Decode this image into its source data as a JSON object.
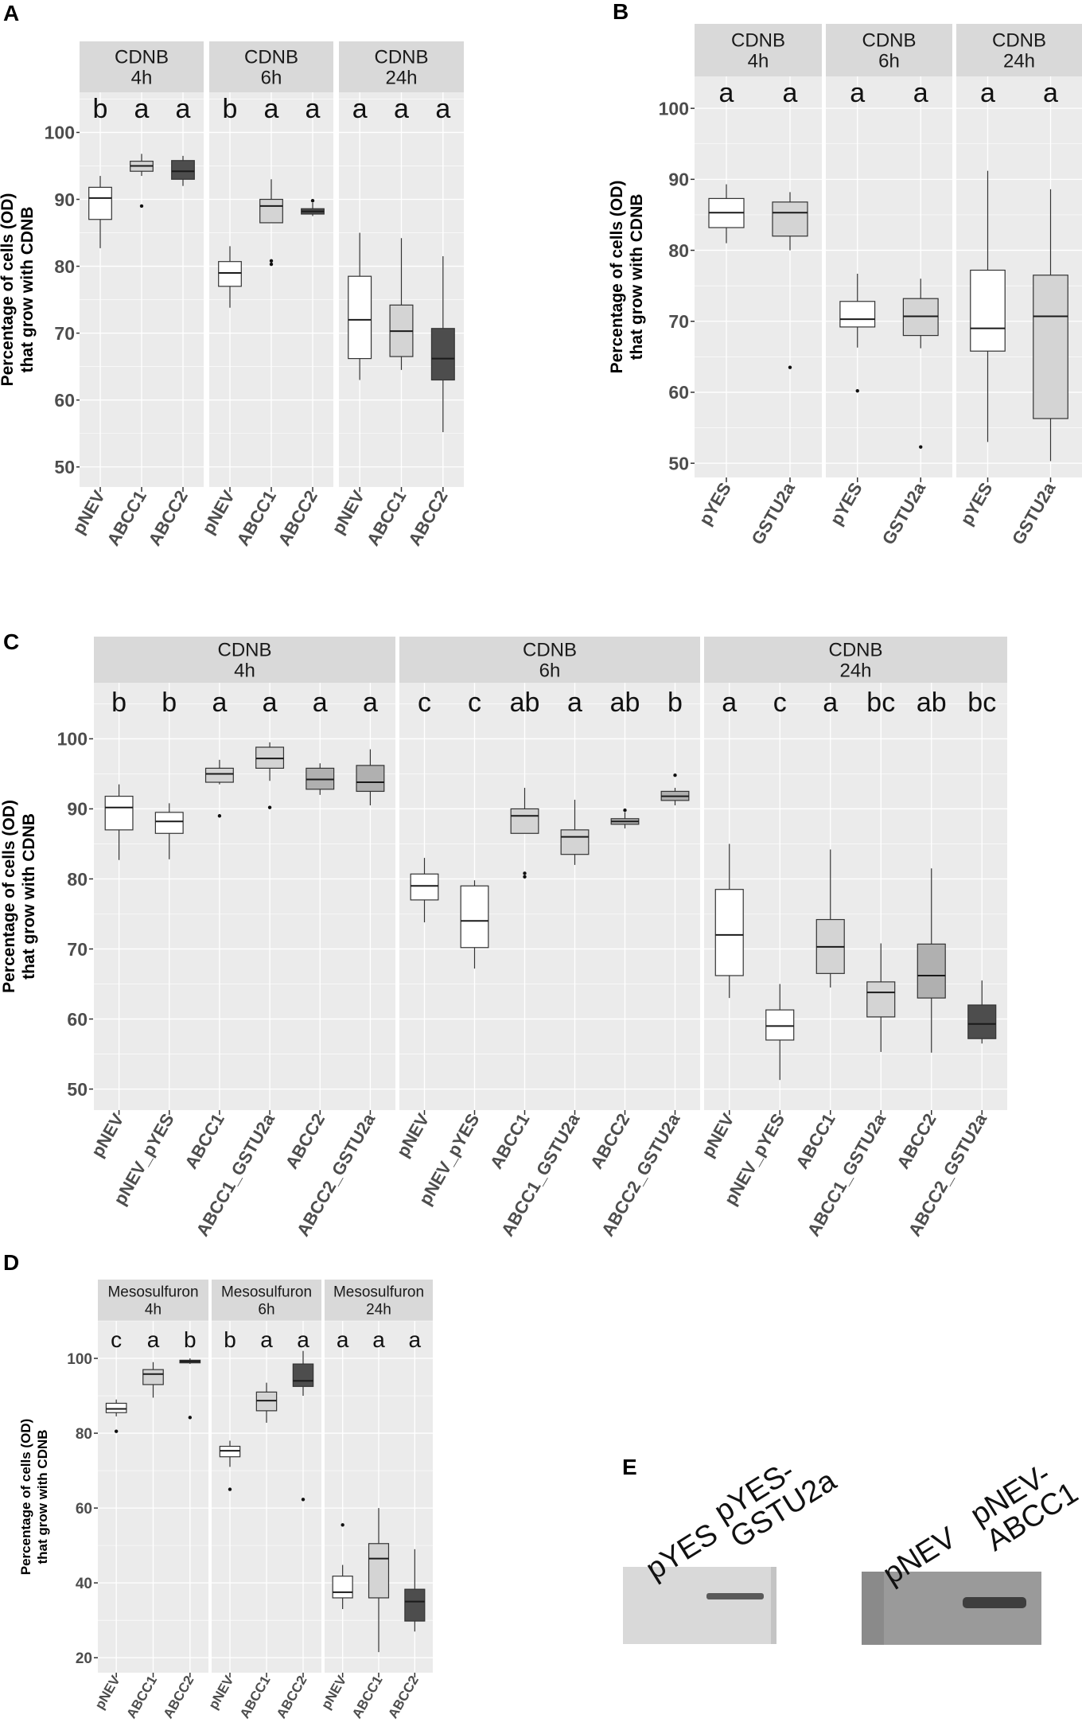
{
  "colors": {
    "panel_bg": "#ebebeb",
    "strip_bg": "#d9d9d9",
    "grid_major": "#ffffff",
    "box_white": "#ffffff",
    "box_light": "#d4d4d4",
    "box_mid": "#b0b0b0",
    "box_dark": "#4d4d4d",
    "axis_text": "#4d4d4d",
    "blot_left_bg": "#d9d9d9",
    "blot_right_bg": "#9a9a9a"
  },
  "chart_data": [
    {
      "panel": "A",
      "type": "box",
      "ylabel": "Percentage of cells (OD)\nthat grow with CDNB",
      "ylim": [
        47,
        106
      ],
      "yticks": [
        50,
        60,
        70,
        80,
        90,
        100
      ],
      "facets": [
        {
          "label": "CDNB\n4h",
          "letters": [
            "b",
            "a",
            "a"
          ],
          "groups": [
            {
              "name": "pNEV",
              "fill": "box_white",
              "min": 82.7,
              "q1": 87,
              "median": 90.2,
              "q3": 91.8,
              "max": 93.5,
              "outliers": []
            },
            {
              "name": "ABCC1",
              "fill": "box_light",
              "min": 93.5,
              "q1": 94.2,
              "median": 95,
              "q3": 95.7,
              "max": 96.8,
              "outliers": [
                89
              ]
            },
            {
              "name": "ABCC2",
              "fill": "box_dark",
              "min": 92,
              "q1": 93,
              "median": 94.2,
              "q3": 95.8,
              "max": 96.5,
              "outliers": []
            }
          ]
        },
        {
          "label": "CDNB\n6h",
          "letters": [
            "b",
            "a",
            "a"
          ],
          "groups": [
            {
              "name": "pNEV",
              "fill": "box_white",
              "min": 73.8,
              "q1": 77,
              "median": 79,
              "q3": 80.7,
              "max": 83,
              "outliers": []
            },
            {
              "name": "ABCC1",
              "fill": "box_light",
              "min": 86.5,
              "q1": 86.5,
              "median": 89,
              "q3": 90,
              "max": 93,
              "outliers": [
                80.3,
                80.8
              ]
            },
            {
              "name": "ABCC2",
              "fill": "box_dark",
              "min": 87.5,
              "q1": 87.8,
              "median": 88.2,
              "q3": 88.6,
              "max": 89.5,
              "outliers": [
                89.8
              ]
            }
          ]
        },
        {
          "label": "CDNB\n24h",
          "letters": [
            "a",
            "a",
            "a"
          ],
          "groups": [
            {
              "name": "pNEV",
              "fill": "box_white",
              "min": 63,
              "q1": 66.2,
              "median": 72,
              "q3": 78.5,
              "max": 85,
              "outliers": []
            },
            {
              "name": "ABCC1",
              "fill": "box_light",
              "min": 64.5,
              "q1": 66.5,
              "median": 70.3,
              "q3": 74.2,
              "max": 84.2,
              "outliers": []
            },
            {
              "name": "ABCC2",
              "fill": "box_dark",
              "min": 55.2,
              "q1": 63,
              "median": 66.2,
              "q3": 70.7,
              "max": 81.5,
              "outliers": []
            }
          ]
        }
      ]
    },
    {
      "panel": "B",
      "type": "box",
      "ylabel": "Percentage of cells (OD)\nthat grow with CDNB",
      "ylim": [
        48,
        104.5
      ],
      "yticks": [
        50,
        60,
        70,
        80,
        90,
        100
      ],
      "facets": [
        {
          "label": "CDNB\n4h",
          "letters": [
            "a",
            "a"
          ],
          "groups": [
            {
              "name": "pYES",
              "fill": "box_white",
              "min": 81,
              "q1": 83.2,
              "median": 85.3,
              "q3": 87.3,
              "max": 89.3,
              "outliers": []
            },
            {
              "name": "GSTU2a",
              "fill": "box_light",
              "min": 80,
              "q1": 82,
              "median": 85.3,
              "q3": 86.8,
              "max": 88.2,
              "outliers": [
                63.5
              ]
            }
          ]
        },
        {
          "label": "CDNB\n6h",
          "letters": [
            "a",
            "a"
          ],
          "groups": [
            {
              "name": "pYES",
              "fill": "box_white",
              "min": 66.3,
              "q1": 69.2,
              "median": 70.3,
              "q3": 72.8,
              "max": 76.7,
              "outliers": [
                60.2
              ]
            },
            {
              "name": "GSTU2a",
              "fill": "box_light",
              "min": 66.2,
              "q1": 68,
              "median": 70.7,
              "q3": 73.2,
              "max": 76,
              "outliers": [
                52.3
              ]
            }
          ]
        },
        {
          "label": "CDNB\n24h",
          "letters": [
            "a",
            "a"
          ],
          "groups": [
            {
              "name": "pYES",
              "fill": "box_white",
              "min": 53,
              "q1": 65.8,
              "median": 69,
              "q3": 77.2,
              "max": 91.2,
              "outliers": []
            },
            {
              "name": "GSTU2a",
              "fill": "box_light",
              "min": 50.3,
              "q1": 56.3,
              "median": 70.7,
              "q3": 76.5,
              "max": 88.6,
              "outliers": []
            }
          ]
        }
      ]
    },
    {
      "panel": "C",
      "type": "box",
      "ylabel": "Percentage of cells (OD)\nthat grow with CDNB",
      "ylim": [
        47,
        108
      ],
      "yticks": [
        50,
        60,
        70,
        80,
        90,
        100
      ],
      "facets": [
        {
          "label": "CDNB\n4h",
          "letters": [
            "b",
            "b",
            "a",
            "a",
            "a",
            "a"
          ],
          "groups": [
            {
              "name": "pNEV",
              "fill": "box_white",
              "min": 82.7,
              "q1": 87,
              "median": 90.2,
              "q3": 91.8,
              "max": 93.5,
              "outliers": []
            },
            {
              "name": "pNEV_pYES",
              "fill": "box_white",
              "min": 82.8,
              "q1": 86.5,
              "median": 88.2,
              "q3": 89.5,
              "max": 90.8,
              "outliers": []
            },
            {
              "name": "ABCC1",
              "fill": "box_light",
              "min": 93.5,
              "q1": 93.8,
              "median": 95,
              "q3": 95.8,
              "max": 97,
              "outliers": [
                89
              ]
            },
            {
              "name": "ABCC1_GSTU2a",
              "fill": "box_light",
              "min": 94,
              "q1": 95.8,
              "median": 97.2,
              "q3": 98.8,
              "max": 99.5,
              "outliers": [
                90.2
              ]
            },
            {
              "name": "ABCC2",
              "fill": "box_mid",
              "min": 92,
              "q1": 92.8,
              "median": 94.2,
              "q3": 95.8,
              "max": 96.5,
              "outliers": []
            },
            {
              "name": "ABCC2_GSTU2a",
              "fill": "box_mid",
              "min": 90.5,
              "q1": 92.5,
              "median": 93.8,
              "q3": 96.2,
              "max": 98.5,
              "outliers": []
            }
          ]
        },
        {
          "label": "CDNB\n6h",
          "letters": [
            "c",
            "c",
            "ab",
            "a",
            "ab",
            "b"
          ],
          "groups": [
            {
              "name": "pNEV",
              "fill": "box_white",
              "min": 73.8,
              "q1": 77,
              "median": 79,
              "q3": 80.7,
              "max": 83,
              "outliers": []
            },
            {
              "name": "pNEV_pYES",
              "fill": "box_white",
              "min": 67.2,
              "q1": 70.2,
              "median": 74,
              "q3": 79,
              "max": 79.8,
              "outliers": []
            },
            {
              "name": "ABCC1",
              "fill": "box_light",
              "min": 86.5,
              "q1": 86.5,
              "median": 89,
              "q3": 90,
              "max": 93,
              "outliers": [
                80.3,
                80.8
              ]
            },
            {
              "name": "ABCC1_GSTU2a",
              "fill": "box_light",
              "min": 82,
              "q1": 83.5,
              "median": 86,
              "q3": 87,
              "max": 91.3,
              "outliers": []
            },
            {
              "name": "ABCC2",
              "fill": "box_mid",
              "min": 87.2,
              "q1": 87.8,
              "median": 88.2,
              "q3": 88.6,
              "max": 89.5,
              "outliers": [
                89.8
              ]
            },
            {
              "name": "ABCC2_GSTU2a",
              "fill": "box_mid",
              "min": 90.5,
              "q1": 91.2,
              "median": 91.8,
              "q3": 92.5,
              "max": 93,
              "outliers": [
                94.8
              ]
            }
          ]
        },
        {
          "label": "CDNB\n24h",
          "letters": [
            "a",
            "c",
            "a",
            "bc",
            "ab",
            "bc"
          ],
          "groups": [
            {
              "name": "pNEV",
              "fill": "box_white",
              "min": 63,
              "q1": 66.2,
              "median": 72,
              "q3": 78.5,
              "max": 85,
              "outliers": []
            },
            {
              "name": "pNEV_pYES",
              "fill": "box_white",
              "min": 51.3,
              "q1": 57,
              "median": 59,
              "q3": 61.3,
              "max": 65,
              "outliers": []
            },
            {
              "name": "ABCC1",
              "fill": "box_light",
              "min": 64.5,
              "q1": 66.5,
              "median": 70.3,
              "q3": 74.2,
              "max": 84.2,
              "outliers": []
            },
            {
              "name": "ABCC1_GSTU2a",
              "fill": "box_light",
              "min": 55.3,
              "q1": 60.3,
              "median": 63.8,
              "q3": 65.3,
              "max": 70.8,
              "outliers": []
            },
            {
              "name": "ABCC2",
              "fill": "box_mid",
              "min": 55.2,
              "q1": 63,
              "median": 66.2,
              "q3": 70.7,
              "max": 81.5,
              "outliers": []
            },
            {
              "name": "ABCC2_GSTU2a",
              "fill": "box_dark",
              "min": 56.5,
              "q1": 57.2,
              "median": 59.3,
              "q3": 62,
              "max": 65.5,
              "outliers": []
            }
          ]
        }
      ]
    },
    {
      "panel": "D",
      "type": "box",
      "ylabel": "Percentage of cells (OD)\nthat grow with CDNB",
      "ylim": [
        16,
        110
      ],
      "yticks": [
        20,
        40,
        60,
        80,
        100
      ],
      "facets": [
        {
          "label": "Mesosulfuron\n4h",
          "letters": [
            "c",
            "a",
            "b"
          ],
          "groups": [
            {
              "name": "pNEV",
              "fill": "box_white",
              "min": 84.5,
              "q1": 85.5,
              "median": 86.5,
              "q3": 88,
              "max": 89,
              "outliers": [
                80.5
              ]
            },
            {
              "name": "ABCC1",
              "fill": "box_light",
              "min": 89.5,
              "q1": 93,
              "median": 95.8,
              "q3": 97,
              "max": 99,
              "outliers": []
            },
            {
              "name": "ABCC2",
              "fill": "box_dark",
              "min": 98.5,
              "q1": 98.8,
              "median": 99.2,
              "q3": 99.5,
              "max": 100,
              "outliers": [
                84.2
              ]
            }
          ]
        },
        {
          "label": "Mesosulfuron\n6h",
          "letters": [
            "b",
            "a",
            "a"
          ],
          "groups": [
            {
              "name": "pNEV",
              "fill": "box_white",
              "min": 71,
              "q1": 73.7,
              "median": 75.3,
              "q3": 76.5,
              "max": 78,
              "outliers": [
                65
              ]
            },
            {
              "name": "ABCC1",
              "fill": "box_light",
              "min": 82.8,
              "q1": 86,
              "median": 88.7,
              "q3": 91,
              "max": 93.5,
              "outliers": []
            },
            {
              "name": "ABCC2",
              "fill": "box_dark",
              "min": 90,
              "q1": 92.5,
              "median": 94,
              "q3": 98.5,
              "max": 102,
              "outliers": [
                62.3
              ]
            }
          ]
        },
        {
          "label": "Mesosulfuron\n24h",
          "letters": [
            "a",
            "a",
            "a"
          ],
          "groups": [
            {
              "name": "pNEV",
              "fill": "box_white",
              "min": 33,
              "q1": 36,
              "median": 37.5,
              "q3": 41.8,
              "max": 44.8,
              "outliers": [
                55.5
              ]
            },
            {
              "name": "ABCC1",
              "fill": "box_light",
              "min": 21.5,
              "q1": 36,
              "median": 46.5,
              "q3": 50.5,
              "max": 60,
              "outliers": []
            },
            {
              "name": "ABCC2",
              "fill": "box_dark",
              "min": 27,
              "q1": 29.8,
              "median": 35,
              "q3": 38.3,
              "max": 49,
              "outliers": []
            }
          ]
        }
      ]
    }
  ],
  "western_blot": {
    "panel": "E",
    "left_lanes": [
      "pYES",
      "pYES-\nGSTU2a"
    ],
    "right_lanes": [
      "pNEV",
      "pNEV-\nABCC1"
    ]
  }
}
